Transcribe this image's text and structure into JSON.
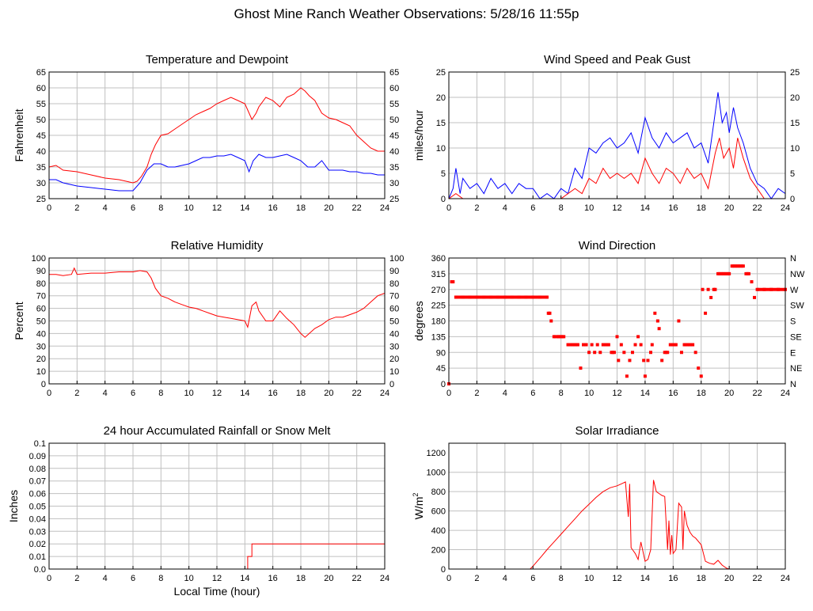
{
  "page": {
    "title": "Ghost Mine Ranch Weather Observations: 5/28/16 11:55p"
  },
  "colors": {
    "temperature": "#ff0000",
    "dewpoint": "#0000ff",
    "gust": "#0000ff",
    "speed": "#ff0000",
    "grid": "#c0c0c0",
    "frame": "#000000"
  },
  "chart_data": [
    {
      "id": "temp",
      "type": "line",
      "title": "Temperature and Dewpoint",
      "ylabel": "Fahrenheit",
      "xlabel": "",
      "xlim": [
        0,
        24
      ],
      "ylim": [
        25,
        65
      ],
      "x_ticks": [
        0,
        2,
        4,
        6,
        8,
        10,
        12,
        14,
        16,
        18,
        20,
        22,
        24
      ],
      "y_ticks": [
        25,
        30,
        35,
        40,
        45,
        50,
        55,
        60,
        65
      ],
      "right_ticks": [
        "25",
        "30",
        "35",
        "40",
        "45",
        "50",
        "55",
        "60",
        "65"
      ],
      "grid": true,
      "series": [
        {
          "color": "#ff0000",
          "x": [
            0,
            0.5,
            1,
            2,
            3,
            4,
            5,
            5.5,
            6,
            6.3,
            6.6,
            7,
            7.3,
            7.6,
            8,
            8.5,
            9,
            9.5,
            10,
            10.5,
            11,
            11.5,
            12,
            12.5,
            13,
            13.5,
            14,
            14.2,
            14.5,
            14.8,
            15,
            15.5,
            16,
            16.5,
            17,
            17.5,
            18,
            18.3,
            18.6,
            19,
            19.5,
            20,
            20.5,
            21,
            21.5,
            22,
            22.5,
            23,
            23.5,
            24
          ],
          "y": [
            35,
            35.5,
            34,
            33.5,
            32.5,
            31.5,
            31,
            30.5,
            30,
            30.5,
            32,
            35,
            39,
            42,
            45,
            45.5,
            47,
            48.5,
            50,
            51.5,
            52.5,
            53.5,
            55,
            56,
            57,
            56,
            55,
            53,
            50,
            52,
            54,
            57,
            56,
            54,
            57,
            58,
            60,
            59,
            57.5,
            56,
            52,
            50.5,
            50,
            49,
            48,
            45,
            43,
            41,
            40,
            40
          ]
        },
        {
          "color": "#0000ff",
          "x": [
            0,
            0.5,
            1,
            2,
            3,
            4,
            5,
            5.5,
            6,
            6.5,
            7,
            7.5,
            8,
            8.5,
            9,
            9.5,
            10,
            10.5,
            11,
            11.5,
            12,
            12.5,
            13,
            13.5,
            14,
            14.3,
            14.6,
            15,
            15.5,
            16,
            16.5,
            17,
            17.5,
            18,
            18.5,
            19,
            19.5,
            20,
            20.5,
            21,
            21.5,
            22,
            22.5,
            23,
            23.5,
            24
          ],
          "y": [
            31,
            31,
            30,
            29,
            28.5,
            28,
            27.5,
            27.5,
            27.5,
            30,
            34,
            36,
            36,
            35,
            35,
            35.5,
            36,
            37,
            38,
            38,
            38.5,
            38.5,
            39,
            38,
            37,
            33.5,
            37,
            39,
            38,
            38,
            38.5,
            39,
            38,
            37,
            35,
            35,
            37,
            34,
            34,
            34,
            33.5,
            33.5,
            33,
            33,
            32.5,
            32.5
          ]
        }
      ]
    },
    {
      "id": "wind",
      "type": "line",
      "title": "Wind Speed and Peak Gust",
      "ylabel": "miles/hour",
      "xlabel": "",
      "xlim": [
        0,
        24
      ],
      "ylim": [
        0,
        25
      ],
      "x_ticks": [
        0,
        2,
        4,
        6,
        8,
        10,
        12,
        14,
        16,
        18,
        20,
        22,
        24
      ],
      "y_ticks": [
        0,
        5,
        10,
        15,
        20,
        25
      ],
      "right_ticks": [
        "0",
        "5",
        "10",
        "15",
        "20",
        "25"
      ],
      "grid": true,
      "series": [
        {
          "color": "#0000ff",
          "x": [
            0,
            0.3,
            0.5,
            0.8,
            1,
            1.5,
            2,
            2.5,
            3,
            3.5,
            4,
            4.5,
            5,
            5.5,
            6,
            6.5,
            7,
            7.5,
            8,
            8.5,
            9,
            9.5,
            10,
            10.5,
            11,
            11.5,
            12,
            12.5,
            13,
            13.5,
            14,
            14.5,
            15,
            15.5,
            16,
            16.5,
            17,
            17.5,
            18,
            18.5,
            19,
            19.2,
            19.5,
            19.8,
            20,
            20.3,
            20.6,
            21,
            21.5,
            22,
            22.5,
            23,
            23.5,
            24
          ],
          "y": [
            0,
            2,
            6,
            1,
            4,
            2,
            3,
            1,
            4,
            2,
            3,
            1,
            3,
            2,
            2,
            0,
            1,
            0,
            2,
            1,
            6,
            4,
            10,
            9,
            11,
            12,
            10,
            11,
            13,
            9,
            16,
            12,
            10,
            13,
            11,
            12,
            13,
            10,
            11,
            7,
            17,
            21,
            15,
            17,
            13,
            18,
            14,
            11,
            6,
            3,
            2,
            0,
            2,
            1
          ]
        },
        {
          "color": "#ff0000",
          "x": [
            0,
            0.5,
            1,
            1.5,
            2,
            3,
            4,
            5,
            6,
            6.5,
            7,
            7.5,
            8,
            8.5,
            9,
            9.5,
            10,
            10.5,
            11,
            11.5,
            12,
            12.5,
            13,
            13.5,
            14,
            14.5,
            15,
            15.5,
            16,
            16.5,
            17,
            17.5,
            18,
            18.5,
            19,
            19.3,
            19.6,
            20,
            20.3,
            20.6,
            21,
            21.5,
            22,
            22.5,
            23,
            23.5,
            24
          ],
          "y": [
            0,
            1,
            0,
            0,
            0,
            0,
            0,
            0,
            0,
            0,
            0,
            0,
            0,
            1,
            2,
            1,
            4,
            3,
            6,
            4,
            5,
            4,
            5,
            3,
            8,
            5,
            3,
            6,
            5,
            3,
            6,
            4,
            5,
            2,
            9,
            12,
            8,
            10,
            6,
            12,
            8,
            4,
            2,
            0,
            0,
            0,
            0
          ]
        }
      ]
    },
    {
      "id": "rh",
      "type": "line",
      "title": "Relative Humidity",
      "ylabel": "Percent",
      "xlabel": "",
      "xlim": [
        0,
        24
      ],
      "ylim": [
        0,
        100
      ],
      "x_ticks": [
        0,
        2,
        4,
        6,
        8,
        10,
        12,
        14,
        16,
        18,
        20,
        22,
        24
      ],
      "y_ticks": [
        0,
        10,
        20,
        30,
        40,
        50,
        60,
        70,
        80,
        90,
        100
      ],
      "right_ticks": [
        "0",
        "10",
        "20",
        "30",
        "40",
        "50",
        "60",
        "70",
        "80",
        "90",
        "100"
      ],
      "grid": true,
      "series": [
        {
          "color": "#ff0000",
          "x": [
            0,
            0.5,
            1,
            1.6,
            1.8,
            2,
            3,
            4,
            5,
            6,
            6.5,
            7,
            7.3,
            7.6,
            8,
            8.5,
            9,
            9.5,
            10,
            10.5,
            11,
            11.5,
            12,
            12.5,
            13,
            13.5,
            14,
            14.2,
            14.5,
            14.8,
            15,
            15.5,
            16,
            16.5,
            17,
            17.5,
            18,
            18.3,
            18.6,
            19,
            19.5,
            20,
            20.5,
            21,
            21.5,
            22,
            22.5,
            23,
            23.5,
            24
          ],
          "y": [
            87,
            87,
            86,
            87,
            92,
            87,
            88,
            88,
            89,
            89,
            90,
            89,
            84,
            76,
            70,
            68,
            65,
            63,
            61,
            60,
            58,
            56,
            54,
            53,
            52,
            51,
            50,
            45,
            62,
            65,
            58,
            50,
            50,
            58,
            52,
            47,
            40,
            37,
            40,
            44,
            47,
            51,
            53,
            53,
            55,
            57,
            60,
            65,
            70,
            72
          ]
        }
      ]
    },
    {
      "id": "dir",
      "type": "scatter",
      "title": "Wind Direction",
      "ylabel": "degrees",
      "xlabel": "",
      "xlim": [
        0,
        24
      ],
      "ylim": [
        0,
        360
      ],
      "x_ticks": [
        0,
        2,
        4,
        6,
        8,
        10,
        12,
        14,
        16,
        18,
        20,
        22,
        24
      ],
      "y_ticks": [
        0,
        45,
        90,
        135,
        180,
        225,
        270,
        315,
        360
      ],
      "right_ticks": [
        "N",
        "NE",
        "E",
        "SE",
        "S",
        "SW",
        "W",
        "NW",
        "N"
      ],
      "grid": true,
      "series": [
        {
          "color": "#ff0000",
          "x": [
            0,
            0.2,
            0.3,
            0.5,
            1,
            1.5,
            2,
            2.5,
            3,
            3.5,
            4,
            4.5,
            5,
            5.5,
            6,
            6.5,
            7,
            7.1,
            7.2,
            7.3,
            7.5,
            7.8,
            8,
            8.2,
            8.5,
            8.8,
            9,
            9.2,
            9.4,
            9.6,
            9.8,
            10,
            10.2,
            10.4,
            10.6,
            10.8,
            11,
            11.2,
            11.4,
            11.6,
            11.8,
            12,
            12.1,
            12.3,
            12.5,
            12.7,
            12.9,
            13.1,
            13.3,
            13.5,
            13.7,
            13.9,
            14,
            14.2,
            14.4,
            14.5,
            14.7,
            14.9,
            15,
            15.2,
            15.4,
            15.6,
            15.8,
            16,
            16.2,
            16.4,
            16.6,
            16.8,
            17,
            17.2,
            17.4,
            17.6,
            17.8,
            18,
            18.1,
            18.3,
            18.5,
            18.7,
            18.9,
            19,
            19.2,
            19.4,
            19.6,
            19.8,
            20,
            20.2,
            20.4,
            20.6,
            20.8,
            21,
            21.2,
            21.4,
            21.6,
            21.8,
            22,
            22.5,
            23,
            23.5,
            24
          ],
          "y": [
            0,
            292,
            292,
            248,
            248,
            248,
            248,
            248,
            248,
            248,
            248,
            248,
            248,
            248,
            248,
            248,
            248,
            202,
            202,
            180,
            135,
            135,
            135,
            135,
            112,
            112,
            112,
            112,
            45,
            112,
            112,
            90,
            112,
            90,
            112,
            90,
            112,
            112,
            112,
            90,
            90,
            135,
            67,
            112,
            90,
            22,
            67,
            90,
            112,
            135,
            112,
            67,
            22,
            67,
            90,
            112,
            202,
            180,
            158,
            67,
            90,
            90,
            112,
            112,
            112,
            180,
            90,
            112,
            112,
            112,
            112,
            90,
            45,
            22,
            270,
            202,
            270,
            247,
            270,
            270,
            315,
            315,
            315,
            315,
            315,
            337,
            337,
            337,
            337,
            337,
            315,
            315,
            292,
            247,
            270,
            270,
            270,
            270,
            270
          ]
        }
      ]
    },
    {
      "id": "rain",
      "type": "line",
      "title": "24 hour Accumulated Rainfall or Snow Melt",
      "ylabel": "Inches",
      "xlabel": "Local Time (hour)",
      "xlim": [
        0,
        24
      ],
      "ylim": [
        0,
        0.1
      ],
      "x_ticks": [
        0,
        2,
        4,
        6,
        8,
        10,
        12,
        14,
        16,
        18,
        20,
        22,
        24
      ],
      "y_ticks": [
        0,
        0.01,
        0.02,
        0.03,
        0.04,
        0.05,
        0.06,
        0.07,
        0.08,
        0.09,
        0.1
      ],
      "y_tick_labels": [
        "0.0",
        "0.01",
        "0.02",
        "0.03",
        "0.04",
        "0.05",
        "0.06",
        "0.07",
        "0.08",
        "0.09",
        "0.1"
      ],
      "grid": true,
      "series": [
        {
          "color": "#ff0000",
          "x": [
            0,
            14.2,
            14.2,
            14.5,
            14.5,
            24
          ],
          "y": [
            0,
            0,
            0.01,
            0.01,
            0.02,
            0.02
          ]
        }
      ]
    },
    {
      "id": "solar",
      "type": "line",
      "title": "Solar Irradiance",
      "ylabel": "W/m",
      "ylabel_sup": "2",
      "xlabel": "",
      "xlim": [
        0,
        24
      ],
      "ylim": [
        0,
        1300
      ],
      "x_ticks": [
        0,
        2,
        4,
        6,
        8,
        10,
        12,
        14,
        16,
        18,
        20,
        22,
        24
      ],
      "y_ticks": [
        0,
        200,
        400,
        600,
        800,
        1000,
        1200
      ],
      "grid": true,
      "series": [
        {
          "color": "#ff0000",
          "x": [
            0,
            5.8,
            6,
            6.3,
            6.6,
            7,
            7.5,
            8,
            8.5,
            9,
            9.5,
            10,
            10.5,
            11,
            11.5,
            12,
            12.3,
            12.6,
            12.8,
            12.9,
            13,
            13.1,
            13.3,
            13.5,
            13.7,
            14,
            14.2,
            14.4,
            14.6,
            14.8,
            15,
            15.2,
            15.4,
            15.6,
            15.7,
            15.8,
            15.9,
            16,
            16.2,
            16.4,
            16.6,
            16.7,
            16.8,
            17,
            17.2,
            17.4,
            17.6,
            18,
            18.3,
            18.6,
            18.9,
            19.2,
            19.5,
            19.8,
            20,
            21,
            22,
            23,
            24
          ],
          "y": [
            0,
            0,
            30,
            80,
            130,
            200,
            280,
            360,
            440,
            520,
            600,
            670,
            740,
            800,
            840,
            860,
            880,
            900,
            540,
            880,
            220,
            200,
            160,
            100,
            280,
            80,
            100,
            200,
            920,
            800,
            780,
            760,
            750,
            200,
            500,
            150,
            350,
            160,
            200,
            680,
            640,
            200,
            600,
            450,
            380,
            340,
            320,
            250,
            80,
            60,
            50,
            90,
            40,
            10,
            0,
            0,
            0,
            0,
            0
          ]
        }
      ]
    }
  ]
}
